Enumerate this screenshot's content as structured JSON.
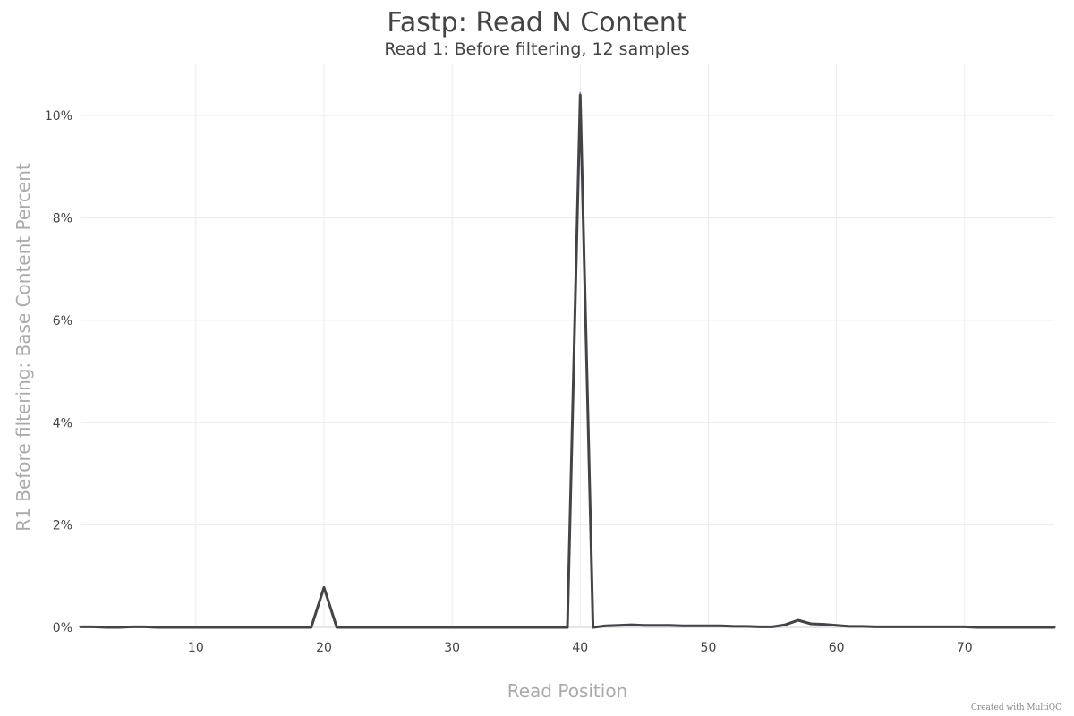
{
  "chart_data": {
    "type": "line",
    "title": "Fastp: Read N Content",
    "subtitle": "Read 1: Before filtering, 12 samples",
    "xlabel": "Read Position",
    "ylabel": "R1 Before filtering: Base Content Percent",
    "xlim": [
      1,
      77
    ],
    "ylim": [
      0,
      11
    ],
    "xticks": [
      10,
      20,
      30,
      40,
      50,
      60,
      70
    ],
    "yticks": [
      0,
      2,
      4,
      6,
      8,
      10
    ],
    "ytick_suffix": "%",
    "grid": true,
    "legend": "none",
    "series": [
      {
        "color": "#434348",
        "x": [
          1,
          2,
          3,
          4,
          5,
          6,
          7,
          8,
          9,
          10,
          11,
          12,
          13,
          14,
          15,
          16,
          17,
          18,
          19,
          20,
          21,
          22,
          23,
          24,
          25,
          26,
          27,
          28,
          29,
          30,
          31,
          32,
          33,
          34,
          35,
          36,
          37,
          38,
          39,
          40,
          41,
          42,
          43,
          44,
          45,
          46,
          47,
          48,
          49,
          50,
          51,
          52,
          53,
          54,
          55,
          56,
          57,
          58,
          59,
          60,
          61,
          62,
          63,
          64,
          65,
          66,
          67,
          68,
          69,
          70,
          71,
          72,
          73,
          74,
          75,
          76,
          77
        ],
        "values": [
          0.01,
          0.01,
          0.0,
          0.0,
          0.01,
          0.01,
          0.0,
          0.0,
          0.0,
          0.0,
          0.0,
          0.0,
          0.0,
          0.0,
          0.0,
          0.0,
          0.0,
          0.0,
          0.0,
          0.78,
          0.0,
          0.0,
          0.0,
          0.0,
          0.0,
          0.0,
          0.0,
          0.0,
          0.0,
          0.0,
          0.0,
          0.0,
          0.0,
          0.0,
          0.0,
          0.0,
          0.0,
          0.0,
          0.0,
          10.4,
          0.0,
          0.03,
          0.04,
          0.05,
          0.04,
          0.04,
          0.04,
          0.03,
          0.03,
          0.03,
          0.03,
          0.02,
          0.02,
          0.01,
          0.01,
          0.05,
          0.14,
          0.07,
          0.06,
          0.04,
          0.02,
          0.02,
          0.01,
          0.01,
          0.01,
          0.01,
          0.01,
          0.01,
          0.01,
          0.01,
          0.0,
          0.0,
          0.0,
          0.0,
          0.0,
          0.0,
          0.0
        ]
      },
      {
        "color": "#7cb5ec",
        "x": [
          39,
          40,
          41
        ],
        "values": [
          0.0,
          10.2,
          0.0
        ]
      },
      {
        "color": "#8085e9",
        "x": [
          39,
          40,
          41
        ],
        "values": [
          0.0,
          10.45,
          0.0
        ]
      },
      {
        "color": "#f7a35c",
        "x": [
          60,
          62,
          64,
          66,
          68,
          70,
          72,
          74,
          77
        ],
        "values": [
          0.03,
          0.02,
          0.02,
          0.02,
          0.02,
          0.02,
          0.01,
          0.0,
          0.0
        ]
      }
    ]
  },
  "credit": "Created with MultiQC"
}
